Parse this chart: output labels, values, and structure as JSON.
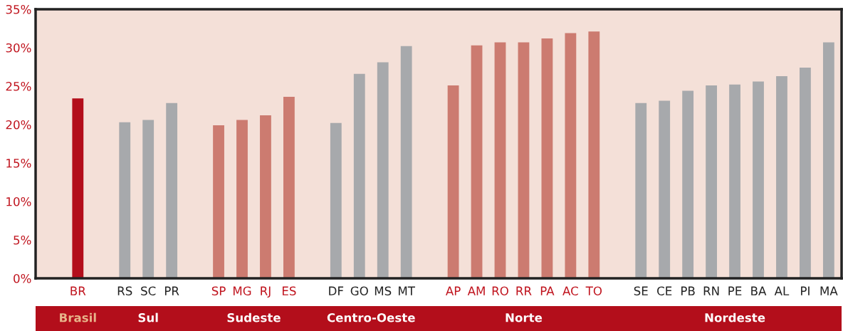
{
  "chart_data": {
    "type": "bar",
    "categories": [
      null,
      "BR",
      null,
      "RS",
      "SC",
      "PR",
      null,
      "SP",
      "MG",
      "RJ",
      "ES",
      null,
      "DF",
      "GO",
      "MS",
      "MT",
      null,
      "AP",
      "AM",
      "RO",
      "RR",
      "PA",
      "AC",
      "TO",
      null,
      "SE",
      "CE",
      "PB",
      "RN",
      "PE",
      "BA",
      "AL",
      "PI",
      "MA"
    ],
    "values": [
      null,
      23.4,
      null,
      20.3,
      20.6,
      22.8,
      null,
      19.9,
      20.6,
      21.2,
      23.6,
      null,
      20.2,
      26.6,
      28.1,
      30.2,
      null,
      25.1,
      30.3,
      30.7,
      30.7,
      31.2,
      31.9,
      32.1,
      null,
      22.8,
      23.1,
      24.4,
      25.1,
      25.2,
      25.6,
      26.3,
      27.4,
      30.7
    ],
    "colors": [
      null,
      "#b30e1b",
      null,
      "#a7a9ac",
      "#a7a9ac",
      "#a7a9ac",
      null,
      "#cc7b70",
      "#cc7b70",
      "#cc7b70",
      "#cc7b70",
      null,
      "#a7a9ac",
      "#a7a9ac",
      "#a7a9ac",
      "#a7a9ac",
      null,
      "#cc7b70",
      "#cc7b70",
      "#cc7b70",
      "#cc7b70",
      "#cc7b70",
      "#cc7b70",
      "#cc7b70",
      null,
      "#a7a9ac",
      "#a7a9ac",
      "#a7a9ac",
      "#a7a9ac",
      "#a7a9ac",
      "#a7a9ac",
      "#a7a9ac",
      "#a7a9ac",
      "#a7a9ac"
    ],
    "ylim": [
      0,
      35
    ],
    "yticks": [
      {
        "value": 0,
        "label": "0%"
      },
      {
        "value": 5,
        "label": "5%"
      },
      {
        "value": 10,
        "label": "10%"
      },
      {
        "value": 15,
        "label": "15%"
      },
      {
        "value": 20,
        "label": "20%"
      },
      {
        "value": 25,
        "label": "25%"
      },
      {
        "value": 30,
        "label": "30%"
      },
      {
        "value": 35,
        "label": "35%"
      }
    ],
    "grid": false,
    "annotations": [
      "Brasil",
      "Sul",
      "Sudeste",
      "Centro-Oeste",
      "Norte",
      "Nordeste"
    ]
  }
}
